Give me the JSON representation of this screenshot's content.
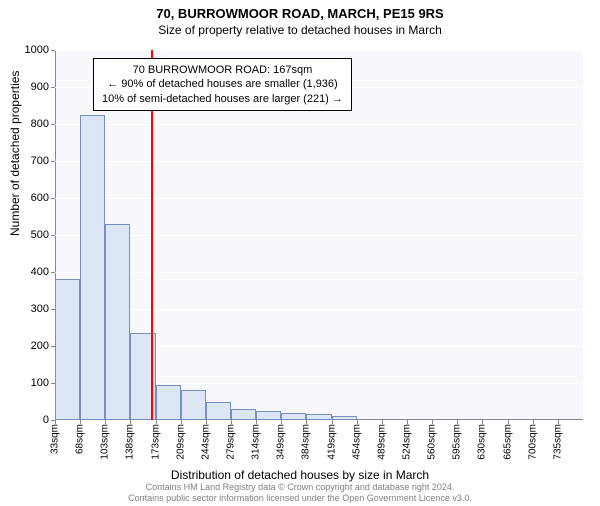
{
  "title_main": "70, BURROWMOOR ROAD, MARCH, PE15 9RS",
  "title_sub": "Size of property relative to detached houses in March",
  "ylabel": "Number of detached properties",
  "xlabel": "Distribution of detached houses by size in March",
  "chart": {
    "type": "histogram",
    "background_color": "#f6f8fc",
    "grid_color": "#ffffff",
    "bar_fill": "#dce6f4",
    "bar_border": "#7890c0",
    "marker_color": "#ff0000",
    "marker_x_value": 167,
    "ylim": [
      0,
      1000
    ],
    "yticks": [
      0,
      100,
      200,
      300,
      400,
      500,
      600,
      700,
      800,
      900,
      1000
    ],
    "x_start": 33,
    "x_step": 35,
    "x_bins": 21,
    "xtick_labels": [
      "33sqm",
      "68sqm",
      "103sqm",
      "138sqm",
      "173sqm",
      "209sqm",
      "244sqm",
      "279sqm",
      "314sqm",
      "349sqm",
      "384sqm",
      "419sqm",
      "454sqm",
      "489sqm",
      "524sqm",
      "560sqm",
      "595sqm",
      "630sqm",
      "665sqm",
      "700sqm",
      "735sqm"
    ],
    "bar_values": [
      380,
      825,
      530,
      235,
      95,
      80,
      50,
      30,
      25,
      20,
      15,
      10,
      0,
      0,
      0,
      0,
      0,
      0,
      0,
      0,
      0
    ]
  },
  "annotation": {
    "line1": "70 BURROWMOOR ROAD: 167sqm",
    "line2": "← 90% of detached houses are smaller (1,936)",
    "line3": "10% of semi-detached houses are larger (221) →",
    "border_color": "#000000",
    "bg_color": "#ffffff"
  },
  "attribution": {
    "line1": "Contains HM Land Registry data © Crown copyright and database right 2024.",
    "line2": "Contains public sector information licensed under the Open Government Licence v3.0."
  }
}
